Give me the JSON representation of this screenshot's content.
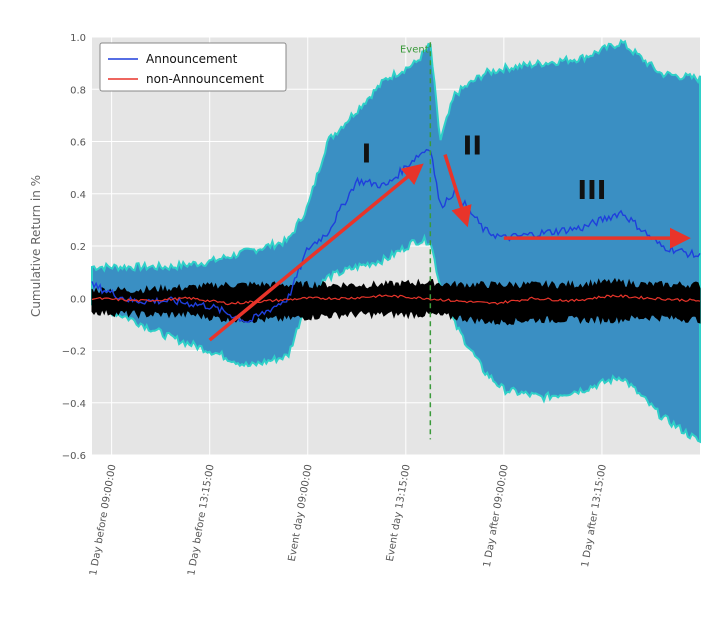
{
  "chart_data": {
    "type": "line",
    "title": "",
    "xlabel": "",
    "ylabel": "Cumulative Return in %",
    "ylim": [
      -0.6,
      1.0
    ],
    "yticks": [
      "1.0",
      "0.8",
      "0.6",
      "0.4",
      "0.2",
      "0.0",
      "−0.2",
      "−0.4",
      "−0.6"
    ],
    "ytick_values": [
      1.0,
      0.8,
      0.6,
      0.4,
      0.2,
      0.0,
      -0.2,
      -0.4,
      -0.6
    ],
    "xticks": [
      "1 Day before 09:00:00",
      "1 Day before 13:15:00",
      "Event day 09:00:00",
      "Event day 13:15:00",
      "1 Day after 09:00:00",
      "1 Day after 13:15:00"
    ],
    "grid": true,
    "legend_position": "top-left",
    "background_color": "#e5e5e5",
    "event_label": "Event",
    "event_x": 3.25,
    "phase_labels": [
      "I",
      "II",
      "III"
    ],
    "series": [
      {
        "name": "Announcement",
        "color": "#1f3fdc",
        "band_color": "#3a8fc3",
        "band_edge_color": "#2fd0c8",
        "x": [
          -0.2,
          0.2,
          0.6,
          1.0,
          1.4,
          1.8,
          2.0,
          2.2,
          2.5,
          2.8,
          3.1,
          3.25,
          3.35,
          3.5,
          3.8,
          4.0,
          4.4,
          4.8,
          5.2,
          5.6,
          6.0
        ],
        "values": [
          0.05,
          -0.01,
          -0.01,
          -0.03,
          -0.09,
          0.0,
          0.19,
          0.25,
          0.45,
          0.43,
          0.54,
          0.58,
          0.35,
          0.41,
          0.26,
          0.23,
          0.25,
          0.27,
          0.33,
          0.2,
          0.16
        ],
        "upper": [
          0.12,
          0.12,
          0.12,
          0.14,
          0.18,
          0.22,
          0.35,
          0.6,
          0.72,
          0.84,
          0.9,
          0.97,
          0.6,
          0.78,
          0.86,
          0.88,
          0.9,
          0.92,
          0.98,
          0.86,
          0.84
        ],
        "lower": [
          -0.02,
          -0.08,
          -0.15,
          -0.2,
          -0.26,
          -0.22,
          0.0,
          0.08,
          0.12,
          0.15,
          0.22,
          0.22,
          0.05,
          -0.1,
          -0.28,
          -0.35,
          -0.38,
          -0.35,
          -0.3,
          -0.45,
          -0.55
        ]
      },
      {
        "name": "non-Announcement",
        "color": "#e8342a",
        "band_color": "#000000",
        "x": [
          -0.2,
          0.3,
          0.8,
          1.2,
          1.6,
          2.0,
          2.4,
          2.8,
          3.2,
          3.5,
          3.9,
          4.3,
          4.7,
          5.1,
          5.5,
          6.0
        ],
        "values": [
          0.0,
          -0.01,
          0.0,
          -0.02,
          -0.01,
          0.0,
          0.0,
          0.01,
          0.0,
          -0.01,
          -0.02,
          0.0,
          -0.01,
          0.01,
          0.0,
          -0.01
        ],
        "upper": [
          0.03,
          0.03,
          0.04,
          0.05,
          0.05,
          0.05,
          0.05,
          0.05,
          0.06,
          0.05,
          0.05,
          0.05,
          0.05,
          0.06,
          0.05,
          0.05
        ],
        "lower": [
          -0.05,
          -0.06,
          -0.06,
          -0.08,
          -0.08,
          -0.07,
          -0.06,
          -0.06,
          -0.06,
          -0.07,
          -0.09,
          -0.08,
          -0.08,
          -0.08,
          -0.07,
          -0.08
        ]
      }
    ],
    "arrows": [
      {
        "from": [
          1.0,
          -0.16
        ],
        "to": [
          3.1,
          0.49
        ]
      },
      {
        "from": [
          3.4,
          0.55
        ],
        "to": [
          3.6,
          0.31
        ]
      },
      {
        "from": [
          4.0,
          0.23
        ],
        "to": [
          5.8,
          0.23
        ]
      }
    ]
  }
}
